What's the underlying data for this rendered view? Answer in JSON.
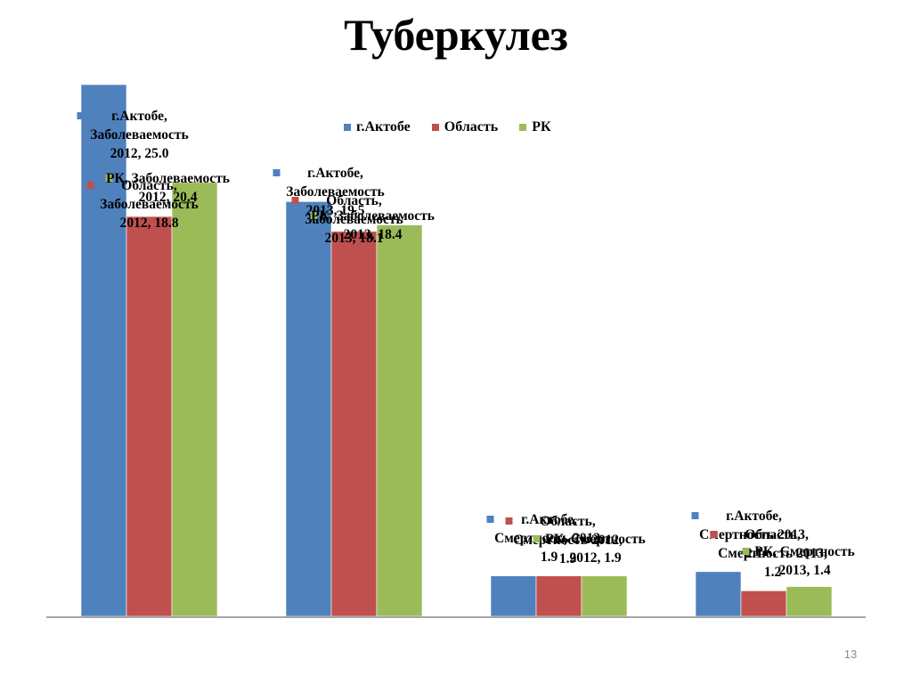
{
  "title": "Туберкулез",
  "page_number": "13",
  "chart_data": {
    "type": "bar",
    "title": "",
    "xlabel": "",
    "ylabel": "",
    "ylim": [
      0,
      25
    ],
    "grid": false,
    "legend_position": "top",
    "categories": [
      "Заболеваемость 2012",
      "Заболеваемость 2013",
      "Смертность 2012",
      "Смертность 2013"
    ],
    "series": [
      {
        "name": "г.Актобе",
        "color": "#4f81bd",
        "values": [
          25.0,
          19.5,
          1.9,
          2.1
        ]
      },
      {
        "name": "Область",
        "color": "#c0504d",
        "values": [
          18.8,
          18.1,
          1.9,
          1.2
        ]
      },
      {
        "name": "РК",
        "color": "#9bbb59",
        "values": [
          20.4,
          18.4,
          1.9,
          1.4
        ]
      }
    ],
    "data_labels": [
      [
        [
          "г.Актобе,",
          "Заболеваемость",
          "2012, 25.0"
        ],
        [
          "г.Актобе,",
          "Заболеваемость",
          "2013, 19.5"
        ],
        [
          "г.Актобе,",
          "Смертность 2012,",
          "1.9"
        ],
        [
          "г.Актобе,",
          "Смертность 2013,",
          "2.1"
        ]
      ],
      [
        [
          "Область,",
          "Заболеваемость",
          "2012, 18.8"
        ],
        [
          "Область,",
          "Заболеваемость",
          "2013, 18.1"
        ],
        [
          "Область,",
          "Смертность 2012,",
          "1.9"
        ],
        [
          "Область,",
          "Смертность 2013,",
          "1.2"
        ]
      ],
      [
        [
          "РК, Заболеваемость",
          "2012, 20.4"
        ],
        [
          "РК, Заболеваемость",
          "2013, 18.4"
        ],
        [
          "РК, Смертность",
          "2012, 1.9"
        ],
        [
          "РК, Смертность",
          "2013, 1.4"
        ]
      ]
    ]
  }
}
